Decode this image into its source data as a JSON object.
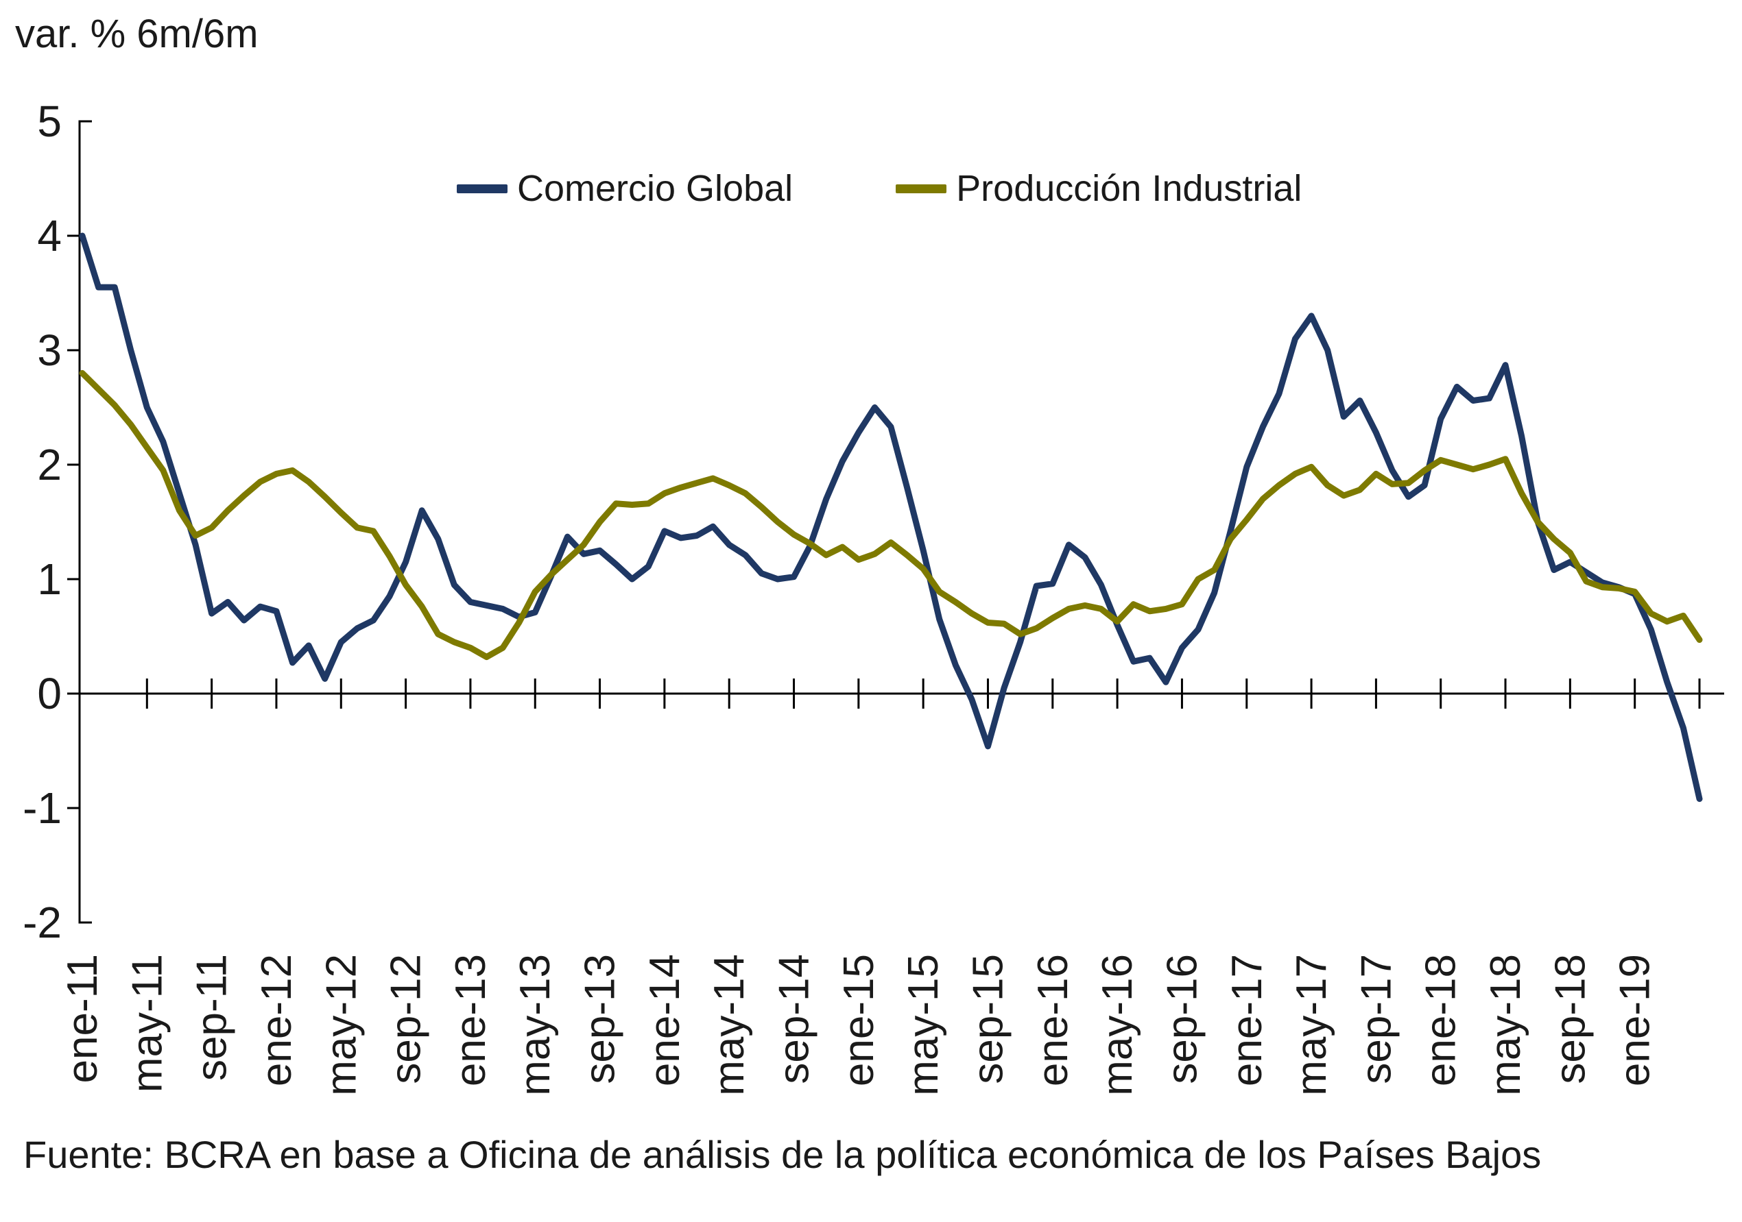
{
  "header": {
    "title": "var. % 6m/6m"
  },
  "legend": [
    {
      "label": "Comercio Global",
      "color": "#1F3864"
    },
    {
      "label": "Producción Industrial",
      "color": "#7E7A00"
    }
  ],
  "footer": {
    "source": "Fuente: BCRA en base a Oficina de análisis de la política económica de los Países Bajos"
  },
  "chart_data": {
    "type": "line",
    "title": "",
    "ylabel": "var. % 6m/6m",
    "xlabel": "",
    "ylim": [
      -2,
      5
    ],
    "grid": false,
    "legend_position": "top-center",
    "y_ticks": [
      5,
      4,
      3,
      2,
      1,
      0,
      -1,
      -2
    ],
    "x_tick_step": 4,
    "months": [
      "ene-11",
      "feb-11",
      "mar-11",
      "abr-11",
      "may-11",
      "jun-11",
      "jul-11",
      "ago-11",
      "sep-11",
      "oct-11",
      "nov-11",
      "dic-11",
      "ene-12",
      "feb-12",
      "mar-12",
      "abr-12",
      "may-12",
      "jun-12",
      "jul-12",
      "ago-12",
      "sep-12",
      "oct-12",
      "nov-12",
      "dic-12",
      "ene-13",
      "feb-13",
      "mar-13",
      "abr-13",
      "may-13",
      "jun-13",
      "jul-13",
      "ago-13",
      "sep-13",
      "oct-13",
      "nov-13",
      "dic-13",
      "ene-14",
      "feb-14",
      "mar-14",
      "abr-14",
      "may-14",
      "jun-14",
      "jul-14",
      "ago-14",
      "sep-14",
      "oct-14",
      "nov-14",
      "dic-14",
      "ene-15",
      "feb-15",
      "mar-15",
      "abr-15",
      "may-15",
      "jun-15",
      "jul-15",
      "ago-15",
      "sep-15",
      "oct-15",
      "nov-15",
      "dic-15",
      "ene-16",
      "feb-16",
      "mar-16",
      "abr-16",
      "may-16",
      "jun-16",
      "jul-16",
      "ago-16",
      "sep-16",
      "oct-16",
      "nov-16",
      "dic-16",
      "ene-17",
      "feb-17",
      "mar-17",
      "abr-17",
      "may-17",
      "jun-17",
      "jul-17",
      "ago-17",
      "sep-17",
      "oct-17",
      "nov-17",
      "dic-17",
      "ene-18",
      "feb-18",
      "mar-18",
      "abr-18",
      "may-18",
      "jun-18",
      "jul-18",
      "ago-18",
      "sep-18",
      "oct-18",
      "nov-18",
      "dic-18",
      "ene-19",
      "feb-19",
      "mar-19",
      "abr-19",
      "may-19"
    ],
    "series": [
      {
        "name": "Comercio Global",
        "color": "#1F3864",
        "values": [
          4.0,
          3.55,
          3.55,
          3.0,
          2.5,
          2.2,
          1.75,
          1.3,
          0.7,
          0.8,
          0.64,
          0.76,
          0.72,
          0.27,
          0.42,
          0.13,
          0.45,
          0.57,
          0.64,
          0.85,
          1.15,
          1.6,
          1.35,
          0.95,
          0.8,
          0.77,
          0.74,
          0.67,
          0.71,
          1.03,
          1.37,
          1.22,
          1.25,
          1.13,
          1.0,
          1.11,
          1.42,
          1.36,
          1.38,
          1.46,
          1.3,
          1.21,
          1.05,
          1.0,
          1.02,
          1.29,
          1.7,
          2.03,
          2.28,
          2.5,
          2.33,
          1.8,
          1.25,
          0.65,
          0.25,
          -0.05,
          -0.46,
          0.05,
          0.45,
          0.94,
          0.96,
          1.3,
          1.19,
          0.95,
          0.6,
          0.28,
          0.31,
          0.1,
          0.4,
          0.56,
          0.88,
          1.42,
          1.98,
          2.33,
          2.62,
          3.1,
          3.3,
          3.0,
          2.42,
          2.56,
          2.28,
          1.95,
          1.72,
          1.82,
          2.4,
          2.68,
          2.56,
          2.58,
          2.87,
          2.25,
          1.5,
          1.08,
          1.15,
          1.06,
          0.97,
          0.93,
          0.87,
          0.56,
          0.1,
          -0.3,
          -0.92
        ]
      },
      {
        "name": "Producción Industrial",
        "color": "#7E7A00",
        "values": [
          2.8,
          2.66,
          2.52,
          2.35,
          2.15,
          1.95,
          1.6,
          1.38,
          1.45,
          1.6,
          1.73,
          1.85,
          1.92,
          1.95,
          1.85,
          1.72,
          1.58,
          1.45,
          1.42,
          1.2,
          0.95,
          0.76,
          0.52,
          0.45,
          0.4,
          0.32,
          0.4,
          0.62,
          0.89,
          1.04,
          1.17,
          1.3,
          1.5,
          1.66,
          1.65,
          1.66,
          1.75,
          1.8,
          1.84,
          1.88,
          1.82,
          1.75,
          1.63,
          1.5,
          1.39,
          1.31,
          1.21,
          1.28,
          1.17,
          1.22,
          1.32,
          1.21,
          1.09,
          0.89,
          0.8,
          0.7,
          0.62,
          0.61,
          0.52,
          0.57,
          0.66,
          0.74,
          0.77,
          0.74,
          0.63,
          0.78,
          0.72,
          0.74,
          0.78,
          1.0,
          1.08,
          1.35,
          1.52,
          1.7,
          1.82,
          1.92,
          1.98,
          1.82,
          1.73,
          1.78,
          1.92,
          1.83,
          1.84,
          1.95,
          2.04,
          2.0,
          1.96,
          2.0,
          2.05,
          1.75,
          1.5,
          1.35,
          1.23,
          0.98,
          0.93,
          0.92,
          0.89,
          0.7,
          0.63,
          0.68,
          0.47
        ]
      }
    ]
  }
}
